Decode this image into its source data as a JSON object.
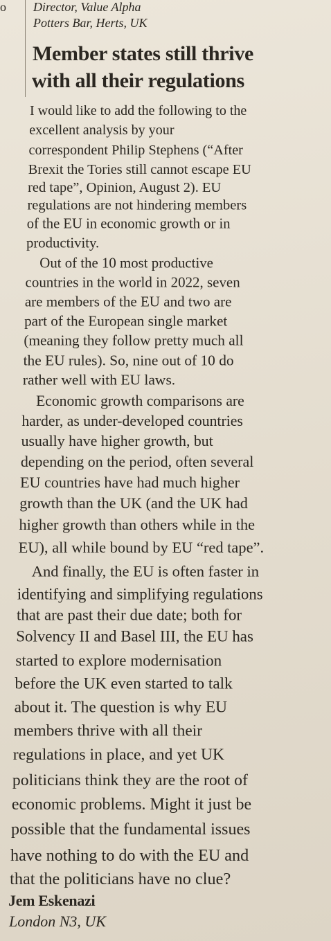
{
  "adjacent_fragment": "o",
  "previous_letter": {
    "signature_lines": [
      "Director, Value Alpha",
      "Potters Bar, Herts, UK"
    ]
  },
  "letter": {
    "headline_lines": [
      "Member states still thrive",
      "with all their regulations"
    ],
    "paragraphs": [
      [
        "I would like to add the following to the",
        "excellent analysis by your",
        "correspondent Philip Stephens (“After",
        "Brexit the Tories still cannot escape EU",
        "red tape”, Opinion, August 2). EU",
        "regulations are not hindering members",
        "of the EU in economic growth or in",
        "productivity."
      ],
      [
        "Out of the 10 most productive",
        "countries in the world in 2022, seven",
        "are members of the EU and two are",
        "part of the European single market",
        "(meaning they follow pretty much all",
        "the EU rules). So, nine out of 10 do",
        "rather well with EU laws."
      ],
      [
        "Economic growth comparisons are",
        "harder, as under-developed countries",
        "usually have higher growth, but",
        "depending on the period, often several",
        "EU countries have had much higher",
        "growth than the UK (and the UK had",
        "higher growth than others while in the",
        "EU), all while bound by EU “red tape”."
      ],
      [
        "And finally, the EU is often faster in",
        "identifying and simplifying regulations",
        "that are past their due date; both for",
        "Solvency II and Basel III, the EU has",
        "started to explore modernisation",
        "before the UK even started to talk",
        "about it. The question is why EU",
        "members thrive with all their",
        "regulations in place, and yet UK",
        "politicians think they are the root of",
        "economic problems. Might it just be",
        "possible that the fundamental issues",
        "have nothing to do with the EU and",
        "that the politicians have no clue?"
      ]
    ],
    "author": "Jem Eskenazi",
    "location": "London N3, UK"
  }
}
